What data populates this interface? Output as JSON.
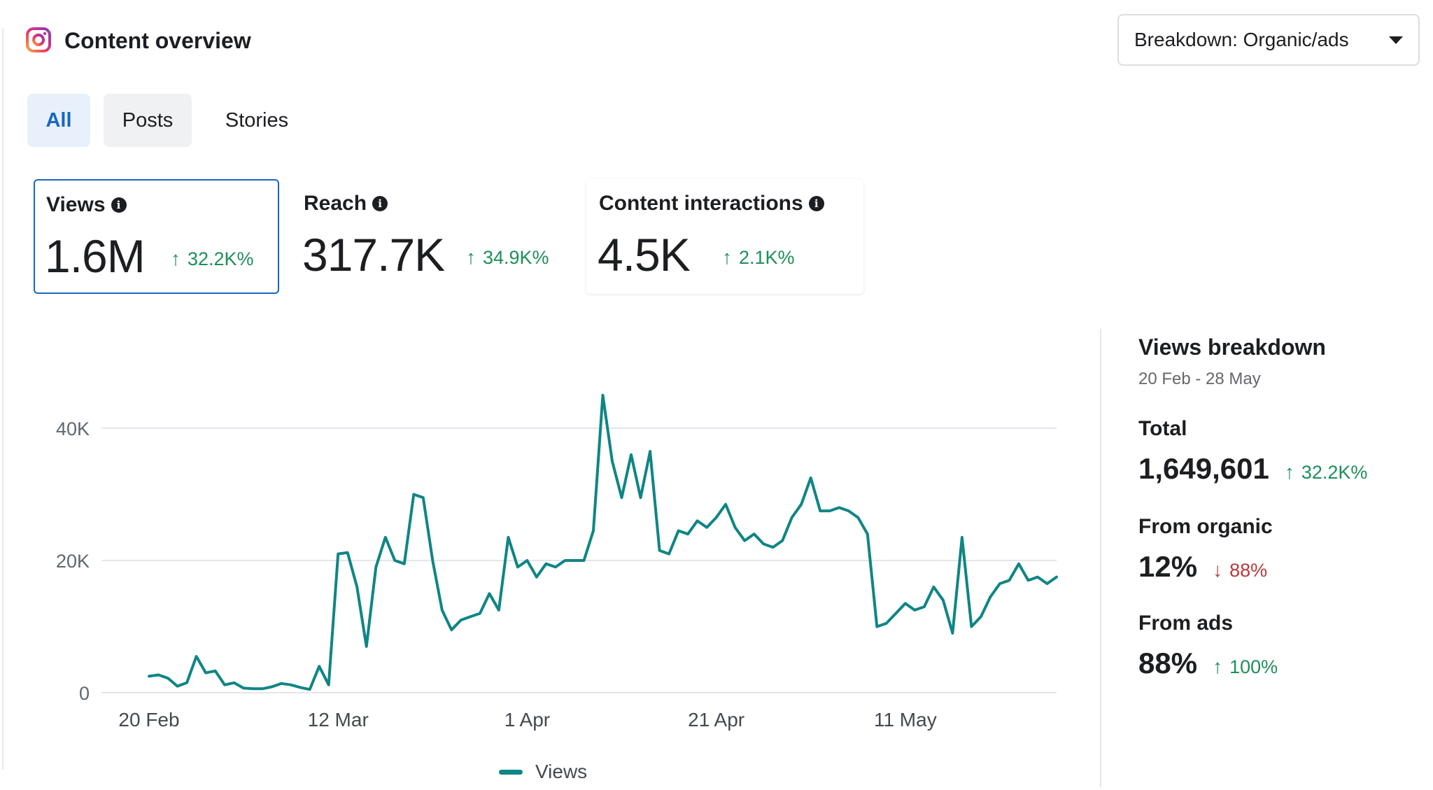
{
  "header": {
    "title": "Content overview",
    "icon": "instagram-icon",
    "breakdown_dropdown": "Breakdown: Organic/ads"
  },
  "tabs": [
    {
      "label": "All",
      "selected": true
    },
    {
      "label": "Posts",
      "selected": false
    },
    {
      "label": "Stories",
      "selected": false
    }
  ],
  "metrics": [
    {
      "label": "Views",
      "value": "1.6M",
      "delta": "32.2K%",
      "direction": "up",
      "selected": true
    },
    {
      "label": "Reach",
      "value": "317.7K",
      "delta": "34.9K%",
      "direction": "up",
      "selected": false
    },
    {
      "label": "Content interactions",
      "value": "4.5K",
      "delta": "2.1K%",
      "direction": "up",
      "selected": false
    }
  ],
  "breakdown": {
    "title": "Views breakdown",
    "date_range": "20 Feb - 28 May",
    "total_label": "Total",
    "total_value": "1,649,601",
    "total_delta": "32.2K%",
    "organic_label": "From organic",
    "organic_value": "12%",
    "organic_delta": "88%",
    "ads_label": "From ads",
    "ads_value": "88%",
    "ads_delta": "100%"
  },
  "colors": {
    "accent": "#1a66c2",
    "line": "#0f8585",
    "positive": "#1e8e5a",
    "negative": "#b73a3a"
  },
  "chart_data": {
    "type": "line",
    "title": "",
    "xlabel": "",
    "ylabel": "",
    "ylim": [
      0,
      40000
    ],
    "yticks": [
      0,
      20000,
      40000
    ],
    "ytick_labels": [
      "0",
      "20K",
      "40K"
    ],
    "xtick_labels": [
      "20 Feb",
      "12 Mar",
      "1 Apr",
      "21 Apr",
      "11 May"
    ],
    "xtick_indices": [
      0,
      20,
      40,
      60,
      80
    ],
    "legend": "bottom-center",
    "series": [
      {
        "name": "Views",
        "values": [
          2500,
          2700,
          2200,
          1000,
          1500,
          5500,
          3000,
          3300,
          1200,
          1500,
          700,
          600,
          600,
          900,
          1400,
          1200,
          800,
          500,
          4000,
          1200,
          21000,
          21200,
          16000,
          7000,
          19000,
          23500,
          20000,
          19500,
          30000,
          29500,
          20000,
          12500,
          9500,
          11000,
          11500,
          12000,
          15000,
          12500,
          23500,
          19000,
          20000,
          17500,
          19500,
          19000,
          20000,
          20000,
          20000,
          24500,
          45000,
          35000,
          29500,
          36000,
          29500,
          36500,
          21500,
          21000,
          24500,
          24000,
          26000,
          25000,
          26500,
          28500,
          25000,
          23000,
          24000,
          22500,
          22000,
          23000,
          26500,
          28500,
          32500,
          27500,
          27500,
          28000,
          27500,
          26500,
          24000,
          10000,
          10500,
          12000,
          13500,
          12500,
          13000,
          16000,
          14000,
          9000,
          23500,
          10000,
          11500,
          14500,
          16500,
          17000,
          19500,
          17000,
          17500,
          16500,
          17500
        ]
      }
    ]
  }
}
